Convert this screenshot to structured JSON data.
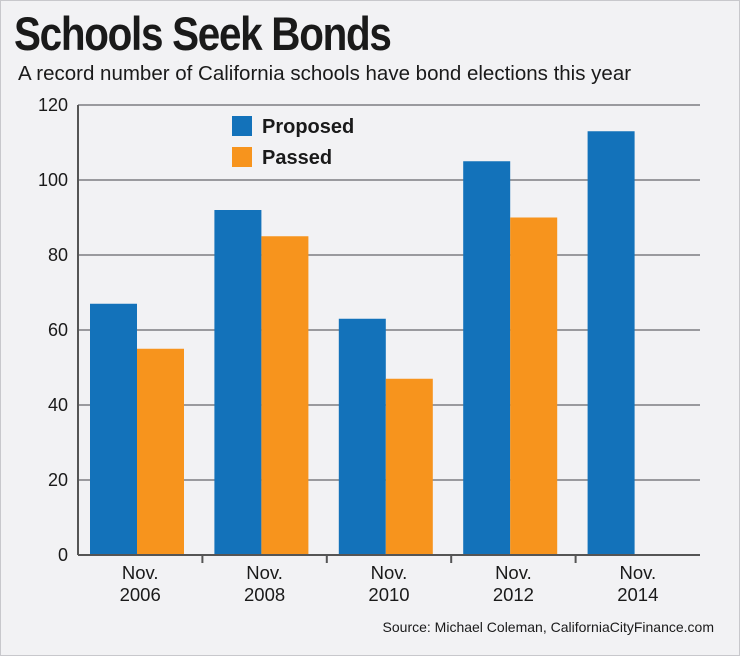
{
  "title": "Schools Seek Bonds",
  "subtitle": "A record number of California schools have bond elections this year",
  "source": "Source: Michael Coleman, CaliforniaCityFinance.com",
  "colors": {
    "proposed": "#1372ba",
    "passed": "#f7941d",
    "grid": "#9a9a9e",
    "background": "#f2f2f4"
  },
  "chart_data": {
    "type": "bar",
    "title": "Schools Seek Bonds",
    "xlabel": "",
    "ylabel": "",
    "ylim": [
      0,
      120
    ],
    "yticks": [
      0,
      20,
      40,
      60,
      80,
      100,
      120
    ],
    "grid": true,
    "legend_position": "top-left",
    "categories": [
      {
        "line1": "Nov.",
        "line2": "2006"
      },
      {
        "line1": "Nov.",
        "line2": "2008"
      },
      {
        "line1": "Nov.",
        "line2": "2010"
      },
      {
        "line1": "Nov.",
        "line2": "2012"
      },
      {
        "line1": "Nov.",
        "line2": "2014"
      }
    ],
    "series": [
      {
        "name": "Proposed",
        "color": "#1372ba",
        "values": [
          67,
          92,
          63,
          105,
          113
        ]
      },
      {
        "name": "Passed",
        "color": "#f7941d",
        "values": [
          55,
          85,
          47,
          90,
          null
        ]
      }
    ]
  }
}
